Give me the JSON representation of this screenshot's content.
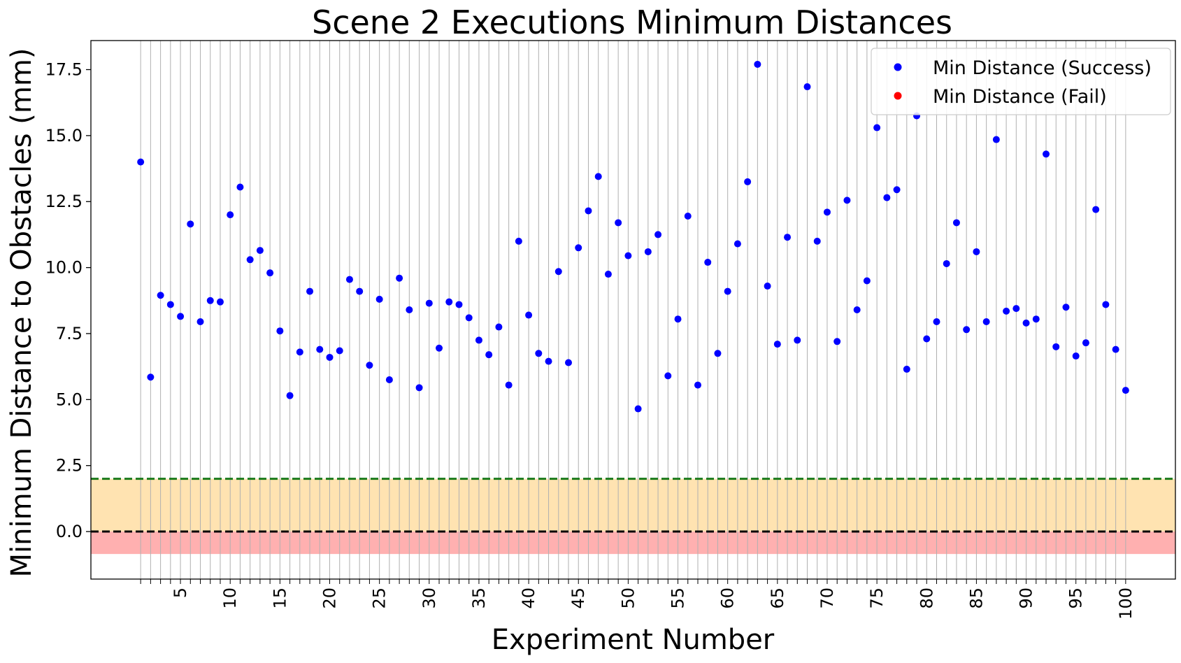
{
  "chart_data": {
    "type": "scatter",
    "title": "Scene 2 Executions Minimum Distances",
    "xlabel": "Experiment Number",
    "ylabel": "Minimum Distance to Obstacles (mm)",
    "xlim": [
      -4,
      105
    ],
    "ylim": [
      -1.8,
      18.6
    ],
    "x_tick_labels": [
      "5",
      "10",
      "15",
      "20",
      "25",
      "30",
      "35",
      "40",
      "45",
      "50",
      "55",
      "60",
      "65",
      "70",
      "75",
      "80",
      "85",
      "90",
      "95",
      "100"
    ],
    "y_tick_labels": [
      "0.0",
      "2.5",
      "5.0",
      "7.5",
      "10.0",
      "12.5",
      "15.0",
      "17.5"
    ],
    "vertical_grid": true,
    "legend_position": "top-right",
    "legend": [
      {
        "label": "Min Distance (Success)",
        "color": "#0000ff"
      },
      {
        "label": "Min Distance (Fail)",
        "color": "#ff0000"
      }
    ],
    "bands": [
      {
        "from": 0.0,
        "to": 2.0,
        "color": "#ffe3b1"
      },
      {
        "from": -0.85,
        "to": 0.0,
        "color": "#ffb0b0"
      }
    ],
    "reference_lines": [
      {
        "y": 2.0,
        "color": "#1a7a1a",
        "style": "dashed"
      },
      {
        "y": 0.0,
        "color": "#000000",
        "style": "dashed"
      }
    ],
    "series": [
      {
        "name": "Min Distance (Success)",
        "color": "#0000ff",
        "x": [
          1,
          2,
          3,
          4,
          5,
          6,
          7,
          8,
          9,
          10,
          11,
          12,
          13,
          14,
          15,
          16,
          17,
          18,
          19,
          20,
          21,
          22,
          23,
          24,
          25,
          26,
          27,
          28,
          29,
          30,
          31,
          32,
          33,
          34,
          35,
          36,
          37,
          38,
          39,
          40,
          41,
          42,
          43,
          44,
          45,
          46,
          47,
          48,
          49,
          50,
          51,
          52,
          53,
          54,
          55,
          56,
          57,
          58,
          59,
          60,
          61,
          62,
          63,
          64,
          65,
          66,
          67,
          68,
          69,
          70,
          71,
          72,
          73,
          74,
          75,
          76,
          77,
          78,
          79,
          80,
          81,
          82,
          83,
          84,
          85,
          86,
          87,
          88,
          89,
          90,
          91,
          92,
          93,
          94,
          95,
          96,
          97,
          98,
          99,
          100
        ],
        "y": [
          14.0,
          5.85,
          8.95,
          8.6,
          8.15,
          11.65,
          7.95,
          8.75,
          8.7,
          12.0,
          13.05,
          10.3,
          10.65,
          9.8,
          7.6,
          5.15,
          6.8,
          9.1,
          6.9,
          6.6,
          6.85,
          9.55,
          9.1,
          6.3,
          8.8,
          5.75,
          9.6,
          8.4,
          5.45,
          8.65,
          6.95,
          8.7,
          8.6,
          8.1,
          7.25,
          6.7,
          7.75,
          5.55,
          11.0,
          8.2,
          6.75,
          6.45,
          9.85,
          6.4,
          10.75,
          12.15,
          13.45,
          9.75,
          11.7,
          10.45,
          4.65,
          10.6,
          11.25,
          5.9,
          8.05,
          11.95,
          5.55,
          10.2,
          6.75,
          9.1,
          10.9,
          13.25,
          17.7,
          9.3,
          7.1,
          11.15,
          7.25,
          16.85,
          11.0,
          12.1,
          7.2,
          12.55,
          8.4,
          9.5,
          15.3,
          12.65,
          12.95,
          6.15,
          15.75,
          7.3,
          7.95,
          10.15,
          11.7,
          7.65,
          10.6,
          7.95,
          14.85,
          8.35,
          8.45,
          7.9,
          8.05,
          14.3,
          7.0,
          8.5,
          6.65,
          7.15,
          12.2,
          8.6,
          6.9,
          5.35
        ]
      },
      {
        "name": "Min Distance (Fail)",
        "color": "#ff0000",
        "x": [],
        "y": []
      }
    ]
  }
}
